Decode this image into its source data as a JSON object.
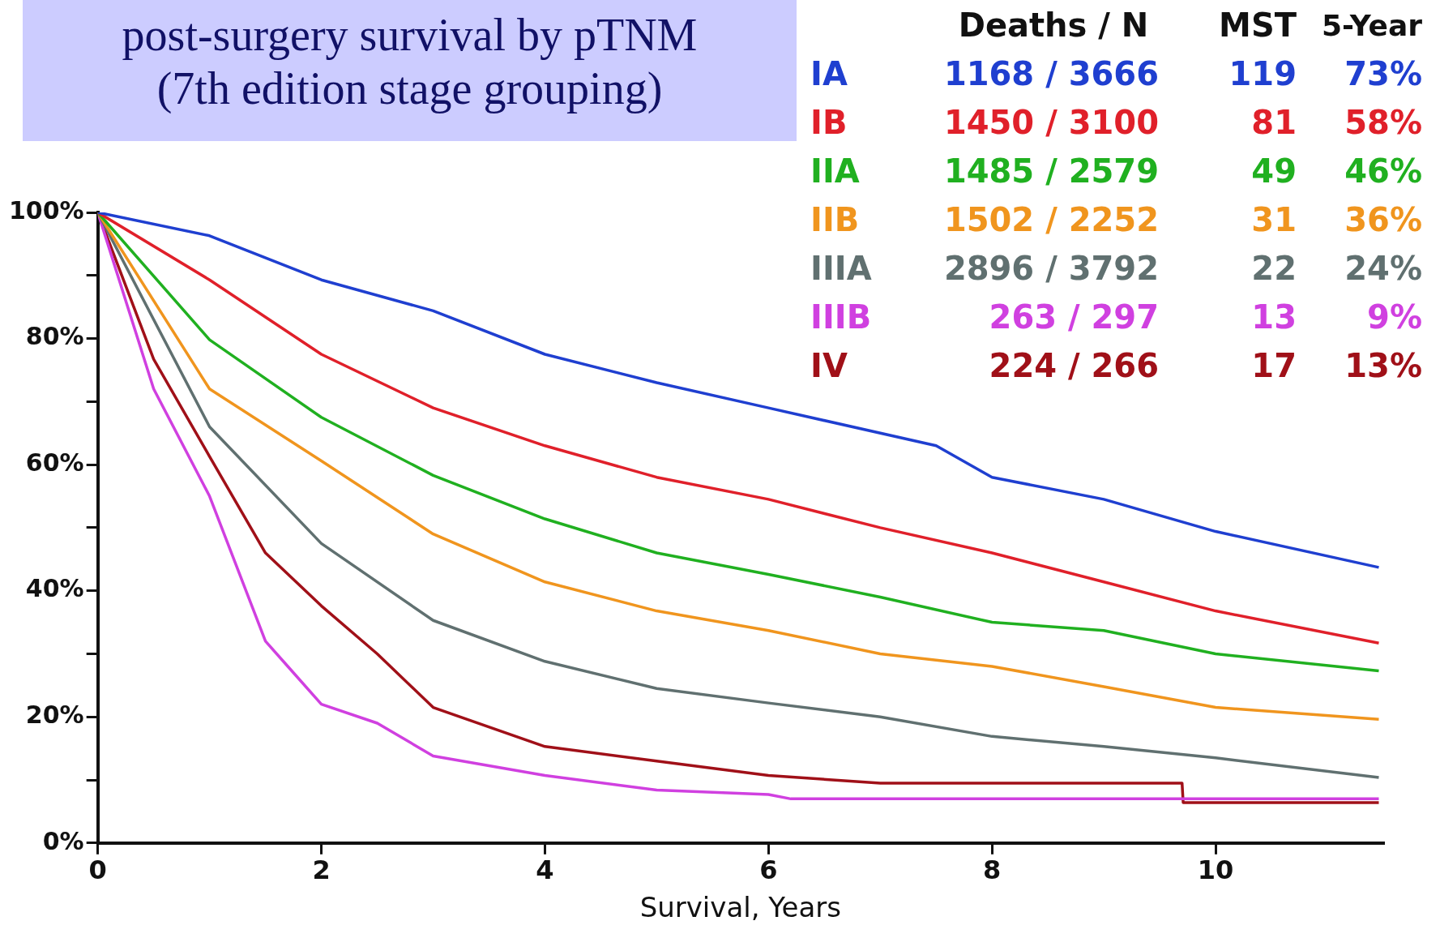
{
  "chart_data": {
    "type": "line",
    "title": "post-surgery survival by pTNM\n(7th edition stage grouping)",
    "xlabel": "Survival, Years",
    "xlim": [
      0,
      11.5
    ],
    "xticks": [
      0,
      2,
      4,
      6,
      8,
      10
    ],
    "ylim": [
      0,
      100
    ],
    "yticks": [
      {
        "value": 0,
        "label": "0%"
      },
      {
        "value": 10,
        "label": null
      },
      {
        "value": 20,
        "label": "20%"
      },
      {
        "value": 30,
        "label": null
      },
      {
        "value": 40,
        "label": "40%"
      },
      {
        "value": 50,
        "label": null
      },
      {
        "value": 60,
        "label": "60%"
      },
      {
        "value": 70,
        "label": null
      },
      {
        "value": 80,
        "label": "80%"
      },
      {
        "value": 90,
        "label": null
      },
      {
        "value": 100,
        "label": "100%"
      }
    ],
    "grid": false,
    "legend": "top right",
    "marker": "none",
    "line_style": "solid",
    "legend_title": "Deaths / N",
    "annotations": [
      "MST",
      "5-Year",
      "1168 / 3666",
      "119",
      "73%",
      "1450 / 3100",
      "81",
      "58%",
      "1485 / 2579",
      "49",
      "46%",
      "1502 / 2252",
      "31",
      "36%",
      "2896 / 3792",
      "22",
      "24%",
      "263 / 297",
      "13",
      "9%",
      "224 / 266",
      "17",
      "13%"
    ],
    "series": [
      {
        "name": "IA",
        "color": "#1f3fd0",
        "x": [
          0,
          1,
          2,
          3,
          4,
          5,
          6,
          7.5,
          8,
          9,
          10,
          11.46
        ],
        "values": [
          100,
          96.3,
          89.3,
          84.4,
          77.5,
          73,
          69,
          63,
          58,
          54.5,
          49.4,
          43.7
        ]
      },
      {
        "name": "IB",
        "color": "#e0202a",
        "x": [
          0,
          1,
          2,
          3,
          4,
          5,
          6,
          7,
          8,
          9,
          10,
          11.46
        ],
        "values": [
          100,
          89.3,
          77.5,
          69,
          63,
          58,
          54.5,
          50,
          46,
          41.4,
          36.8,
          31.7
        ]
      },
      {
        "name": "IIA",
        "color": "#20b020",
        "x": [
          0,
          1,
          2,
          3,
          4,
          5,
          6,
          7,
          8,
          9,
          10,
          11.46
        ],
        "values": [
          100,
          79.8,
          67.5,
          58.3,
          51.4,
          46,
          42.6,
          39,
          35,
          33.7,
          30,
          27.3
        ]
      },
      {
        "name": "IIB",
        "color": "#f0951e",
        "x": [
          0,
          1,
          2,
          3,
          4,
          5,
          6,
          7,
          8,
          9,
          10,
          11.46
        ],
        "values": [
          100,
          72,
          60.6,
          49,
          41.4,
          36.8,
          33.7,
          30,
          28,
          24.8,
          21.5,
          19.6
        ]
      },
      {
        "name": "IIIA",
        "color": "#607070",
        "x": [
          0,
          1,
          2,
          3,
          4,
          5,
          6,
          7,
          8,
          9,
          10,
          11.46
        ],
        "values": [
          100,
          66,
          47.5,
          35.3,
          28.8,
          24.5,
          22.2,
          20,
          16.9,
          15.3,
          13.5,
          10.4
        ]
      },
      {
        "name": "IIIB",
        "color": "#d040e0",
        "x": [
          0,
          0.5,
          1,
          1.5,
          1.7,
          2,
          2.5,
          3,
          4,
          5,
          6,
          6.2,
          11.46
        ],
        "values": [
          100,
          72,
          55,
          32,
          28,
          22,
          19,
          13.8,
          10.7,
          8.4,
          7.7,
          7,
          7
        ]
      },
      {
        "name": "IV",
        "color": "#a01018",
        "x": [
          0,
          0.5,
          1,
          1.5,
          2,
          2.5,
          3,
          4,
          5,
          6,
          7,
          9.7,
          9.71,
          11.46
        ],
        "values": [
          100,
          76.7,
          61.3,
          46,
          37.6,
          30,
          21.5,
          15.3,
          13,
          10.7,
          9.5,
          9.5,
          6.4,
          6.4
        ]
      }
    ]
  }
}
